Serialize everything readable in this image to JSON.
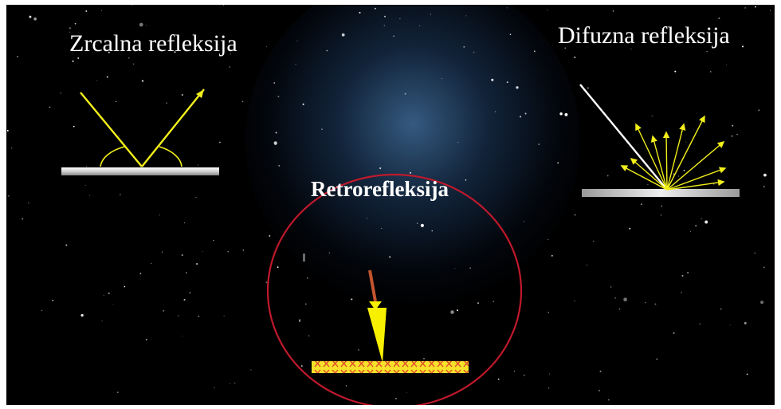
{
  "labels": {
    "specular": "Zrcalna refleksija",
    "diffuse": "Difuzna refleksija",
    "retro": "Retrorefleksija"
  },
  "icons": {
    "specular": "specular-reflection-diagram",
    "diffuse": "diffuse-reflection-diagram",
    "retro": "retroreflector-diagram"
  },
  "colors": {
    "background": "#000000",
    "rays": "#f2ef1a",
    "incident_ray_diffuse": "#ffffff",
    "circle": "#c0192c",
    "reflector": "#f7e12a",
    "reflector_marks": "#e05030",
    "surface": "#d8d8d8"
  }
}
